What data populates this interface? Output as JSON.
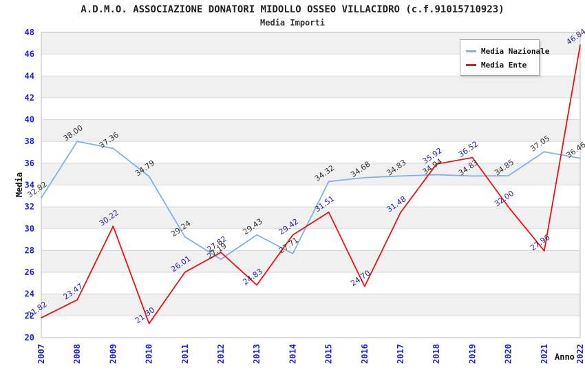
{
  "title": "A.D.M.O. ASSOCIAZIONE DONATORI MIDOLLO OSSEO VILLACIDRO (c.f.91015710923)",
  "subtitle": "Media Importi",
  "chart_data": {
    "type": "line",
    "x": [
      2007,
      2008,
      2009,
      2010,
      2011,
      2012,
      2013,
      2014,
      2015,
      2016,
      2017,
      2018,
      2019,
      2020,
      2021,
      2022
    ],
    "xlabel": "Anno",
    "ylabel": "Media",
    "ylim": [
      20,
      48
    ],
    "ytick_step": 2,
    "grid": "horizontal-bands-alternating",
    "legend_position": "top-right-inside",
    "series": [
      {
        "name": "Media Nazionale",
        "color": "#7eb2e4",
        "label_color": "#333333",
        "values": [
          32.82,
          38.0,
          37.36,
          34.79,
          29.24,
          27.19,
          29.43,
          27.71,
          34.32,
          34.68,
          34.83,
          34.94,
          34.83,
          34.85,
          37.05,
          36.46
        ]
      },
      {
        "name": "Media Ente",
        "color": "#ee1111",
        "label_color": "#252599",
        "values": [
          21.82,
          23.47,
          30.22,
          21.3,
          26.01,
          27.82,
          24.83,
          29.42,
          31.51,
          24.7,
          31.48,
          35.92,
          36.52,
          32.0,
          27.96,
          46.84
        ]
      }
    ],
    "colors": {
      "axis_tick": "#2222dd",
      "band_gray": "#f0f0f0",
      "band_white": "#ffffff",
      "grid_line": "#d9d9d9",
      "border": "#bbbbbb"
    }
  }
}
